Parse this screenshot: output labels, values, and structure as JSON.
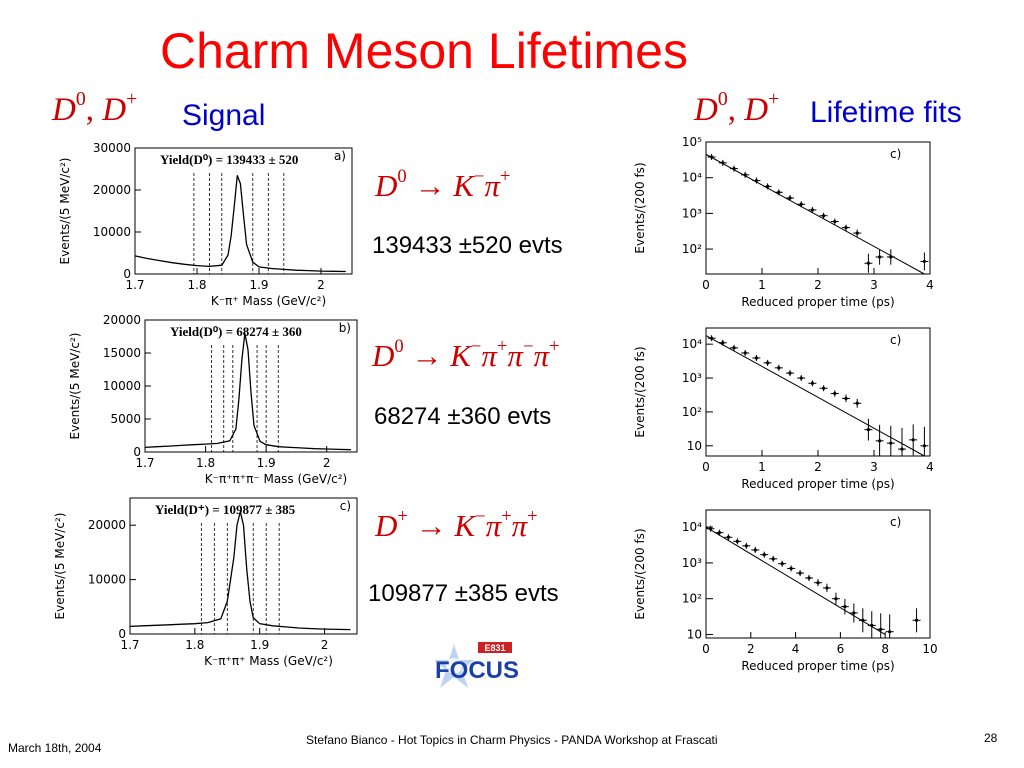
{
  "slide": {
    "title": "Charm Meson Lifetimes",
    "left_header_label": "Signal",
    "right_header_label": "Lifetime fits",
    "header_math": {
      "d": "D",
      "sup0": "0",
      "comma": ",",
      "supplus": "+"
    },
    "decays": [
      {
        "parent": "D",
        "parent_charge": "0",
        "arrow": "→",
        "products": [
          {
            "base": "K",
            "charge": "−"
          },
          {
            "base": "π",
            "charge": "+"
          }
        ],
        "yield_text": "139433 ±520 evts"
      },
      {
        "parent": "D",
        "parent_charge": "0",
        "arrow": "→",
        "products": [
          {
            "base": "K",
            "charge": "−"
          },
          {
            "base": "π",
            "charge": "+"
          },
          {
            "base": "π",
            "charge": "−"
          },
          {
            "base": "π",
            "charge": "+"
          }
        ],
        "yield_text": "68274 ±360 evts"
      },
      {
        "parent": "D",
        "parent_charge": "+",
        "arrow": "→",
        "products": [
          {
            "base": "K",
            "charge": "−"
          },
          {
            "base": "π",
            "charge": "+"
          },
          {
            "base": "π",
            "charge": "+"
          }
        ],
        "yield_text": "109877 ±385 evts"
      }
    ],
    "logo": {
      "top_text": "E831",
      "text": "FOCUS"
    },
    "footer": {
      "date": "March 18th, 2004",
      "citation": "Stefano Bianco - Hot Topics in Charm Physics - PANDA Workshop at Frascati",
      "page_number": "28"
    }
  },
  "chart_data": [
    {
      "type": "line",
      "panel": "a)",
      "annotation": "Yield(D⁰) = 139433 ± 520",
      "xlabel": "K⁻π⁺  Mass   (GeV/c²)",
      "ylabel": "Events/(5 MeV/c²)",
      "xlim": [
        1.7,
        2.05
      ],
      "ylim": [
        0,
        30000
      ],
      "xticks": [
        "1.7",
        "1.8",
        "1.9",
        "2"
      ],
      "yticks": [
        "0",
        "10000",
        "20000",
        "30000"
      ],
      "signal_peak": 1.865,
      "dashed_lines": [
        1.795,
        1.82,
        1.84,
        1.89,
        1.915,
        1.94
      ],
      "x": [
        1.7,
        1.72,
        1.74,
        1.76,
        1.78,
        1.8,
        1.82,
        1.84,
        1.85,
        1.855,
        1.86,
        1.865,
        1.87,
        1.875,
        1.88,
        1.89,
        1.9,
        1.92,
        1.94,
        1.96,
        1.98,
        2.0,
        2.02,
        2.04
      ],
      "y": [
        4300,
        3700,
        3200,
        2700,
        2300,
        2000,
        1800,
        2100,
        4500,
        9000,
        16000,
        23500,
        21500,
        14000,
        7000,
        2800,
        1700,
        1300,
        1100,
        900,
        800,
        700,
        650,
        600
      ]
    },
    {
      "type": "line",
      "panel": "b)",
      "annotation": "Yield(D⁰) = 68274 ± 360",
      "xlabel": "K⁻π⁺π⁺π⁻  Mass   (GeV/c²)",
      "ylabel": "Events/(5 MeV/c²)",
      "xlim": [
        1.7,
        2.05
      ],
      "ylim": [
        0,
        20000
      ],
      "xticks": [
        "1.7",
        "1.8",
        "1.9",
        "2"
      ],
      "yticks": [
        "0",
        "5000",
        "10000",
        "15000",
        "20000"
      ],
      "signal_peak": 1.865,
      "dashed_lines": [
        1.81,
        1.83,
        1.845,
        1.885,
        1.9,
        1.92
      ],
      "x": [
        1.7,
        1.72,
        1.74,
        1.76,
        1.78,
        1.8,
        1.82,
        1.84,
        1.85,
        1.855,
        1.86,
        1.865,
        1.87,
        1.875,
        1.88,
        1.89,
        1.9,
        1.92,
        1.94,
        1.96,
        1.98,
        2.0,
        2.02,
        2.04
      ],
      "y": [
        700,
        800,
        900,
        1000,
        1100,
        1200,
        1300,
        1700,
        3500,
        8000,
        14000,
        18000,
        15500,
        9000,
        4000,
        1600,
        1100,
        800,
        700,
        600,
        500,
        450,
        400,
        350
      ]
    },
    {
      "type": "line",
      "panel": "c)",
      "annotation": "Yield(D⁺) = 109877 ± 385",
      "xlabel": "K⁻π⁺π⁺   Mass   (GeV/c²)",
      "ylabel": "Events/(5 MeV/c²)",
      "xlim": [
        1.7,
        2.05
      ],
      "ylim": [
        0,
        25000
      ],
      "xticks": [
        "1.7",
        "1.8",
        "1.9",
        "2"
      ],
      "yticks": [
        "0",
        "10000",
        "20000"
      ],
      "signal_peak": 1.869,
      "dashed_lines": [
        1.81,
        1.83,
        1.85,
        1.89,
        1.91,
        1.93
      ],
      "x": [
        1.7,
        1.72,
        1.74,
        1.76,
        1.78,
        1.8,
        1.82,
        1.84,
        1.85,
        1.86,
        1.865,
        1.87,
        1.875,
        1.88,
        1.885,
        1.89,
        1.9,
        1.92,
        1.94,
        1.96,
        1.98,
        2.0,
        2.02,
        2.04
      ],
      "y": [
        1400,
        1500,
        1600,
        1700,
        1800,
        1900,
        2100,
        2800,
        6000,
        14000,
        20000,
        22500,
        20000,
        12000,
        6000,
        3000,
        1900,
        1500,
        1300,
        1100,
        1000,
        900,
        850,
        800
      ]
    },
    {
      "type": "scatter",
      "panel": "c)",
      "xlabel": "Reduced proper time (ps)",
      "ylabel": "Events/(200 fs)",
      "xlim": [
        0,
        4
      ],
      "ylim": [
        20,
        100000
      ],
      "yscale": "log",
      "xticks": [
        "0",
        "1",
        "2",
        "3",
        "4"
      ],
      "yticks": [
        "10²",
        "10³",
        "10⁴",
        "10⁵"
      ],
      "points_x": [
        0.1,
        0.3,
        0.5,
        0.7,
        0.9,
        1.1,
        1.3,
        1.5,
        1.7,
        1.9,
        2.1,
        2.3,
        2.5,
        2.7,
        2.9,
        3.1,
        3.3,
        3.9
      ],
      "points_y": [
        38000,
        26000,
        18000,
        12000,
        8300,
        5700,
        3900,
        2700,
        1800,
        1250,
        860,
        590,
        400,
        280,
        40,
        60,
        60,
        45
      ],
      "fit_x": [
        0,
        3.9
      ],
      "fit_y": [
        45000,
        20
      ]
    },
    {
      "type": "scatter",
      "panel": "c)",
      "xlabel": "Reduced proper time (ps)",
      "ylabel": "Events/(200 fs)",
      "xlim": [
        0,
        4
      ],
      "ylim": [
        5,
        30000
      ],
      "yscale": "log",
      "xticks": [
        "0",
        "1",
        "2",
        "3",
        "4"
      ],
      "yticks": [
        "10",
        "10²",
        "10³",
        "10⁴"
      ],
      "points_x": [
        0.1,
        0.3,
        0.5,
        0.7,
        0.9,
        1.1,
        1.3,
        1.5,
        1.7,
        1.9,
        2.1,
        2.3,
        2.5,
        2.7,
        2.9,
        3.1,
        3.3,
        3.5,
        3.7,
        3.9
      ],
      "points_y": [
        15000,
        11000,
        7800,
        5500,
        3900,
        2800,
        2000,
        1400,
        1000,
        700,
        500,
        350,
        250,
        180,
        30,
        14,
        12,
        8,
        15,
        10
      ],
      "fit_x": [
        0,
        3.9
      ],
      "fit_y": [
        18000,
        5
      ]
    },
    {
      "type": "scatter",
      "panel": "c)",
      "xlabel": "Reduced proper time (ps)",
      "ylabel": "Events/(200 fs)",
      "xlim": [
        0,
        10
      ],
      "ylim": [
        8,
        30000
      ],
      "yscale": "log",
      "xticks": [
        "0",
        "2",
        "4",
        "6",
        "8",
        "10"
      ],
      "yticks": [
        "10",
        "10²",
        "10³",
        "10⁴"
      ],
      "points_x": [
        0.2,
        0.6,
        1.0,
        1.4,
        1.8,
        2.2,
        2.6,
        3.0,
        3.4,
        3.8,
        4.2,
        4.6,
        5.0,
        5.4,
        5.8,
        6.2,
        6.6,
        7.0,
        7.4,
        7.8,
        8.2,
        9.4
      ],
      "points_y": [
        9000,
        7000,
        5200,
        4000,
        3000,
        2300,
        1700,
        1300,
        950,
        700,
        520,
        380,
        280,
        200,
        100,
        60,
        40,
        25,
        18,
        14,
        12,
        25
      ],
      "fit_x": [
        0,
        8.0
      ],
      "fit_y": [
        10000,
        10
      ]
    }
  ]
}
